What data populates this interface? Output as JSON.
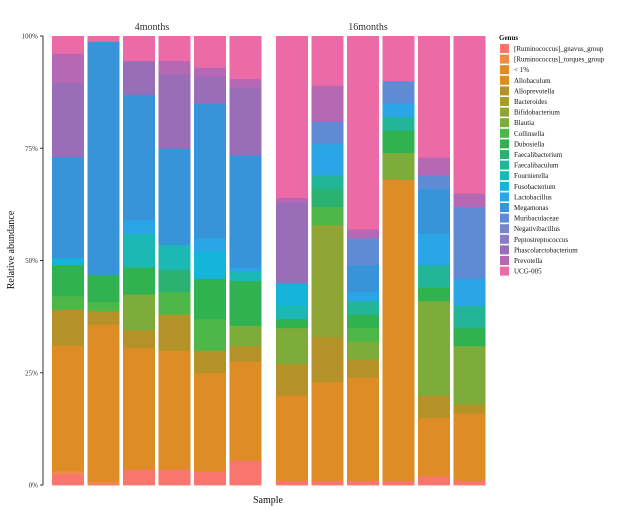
{
  "chart_data": {
    "type": "bar",
    "stacked": true,
    "facets": [
      "4months",
      "16months"
    ],
    "xlabel": "Sample",
    "ylabel": "Relative abundance",
    "ylim": [
      0,
      1
    ],
    "yticks": [
      "0%",
      "25%",
      "50%",
      "75%",
      "100%"
    ],
    "legend": {
      "title": "Genus",
      "position": "right",
      "items": [
        {
          "name": "[Ruminococcus]_gnavus_group",
          "color": "#F8766D"
        },
        {
          "name": "[Ruminococcus]_torques_group",
          "color": "#F08A47"
        },
        {
          "name": "< 1%",
          "color": "#DD8C26"
        },
        {
          "name": "Allobaculum",
          "color": "#D9901A"
        },
        {
          "name": "Alloprevotella",
          "color": "#B59228"
        },
        {
          "name": "Bacteroides",
          "color": "#A99C2C"
        },
        {
          "name": "Bifidobacterium",
          "color": "#8FA637"
        },
        {
          "name": "Blautia",
          "color": "#7EAC3A"
        },
        {
          "name": "Collinsella",
          "color": "#4DB848"
        },
        {
          "name": "Dubosiella",
          "color": "#2FB24F"
        },
        {
          "name": "Faecalibacterium",
          "color": "#2BB273"
        },
        {
          "name": "Faecalibaculum",
          "color": "#22B597"
        },
        {
          "name": "Fournierella",
          "color": "#1CB8B6"
        },
        {
          "name": "Fusobacterium",
          "color": "#14B5D8"
        },
        {
          "name": "Lactobacillus",
          "color": "#2AA6E6"
        },
        {
          "name": "Megamonas",
          "color": "#3894D9"
        },
        {
          "name": "Muribaculaceae",
          "color": "#5E8BD4"
        },
        {
          "name": "Negativibacillus",
          "color": "#7686CC"
        },
        {
          "name": "Peptostreptococcus",
          "color": "#8A7CC4"
        },
        {
          "name": "Phascolarctobacterium",
          "color": "#9A6DB8"
        },
        {
          "name": "Prevotella",
          "color": "#B568B3"
        },
        {
          "name": "UCG-005",
          "color": "#EC6BA6"
        }
      ]
    },
    "series_order": [
      "[Ruminococcus]_gnavus_group",
      "[Ruminococcus]_torques_group",
      "< 1%",
      "Allobaculum",
      "Alloprevotella",
      "Bacteroides",
      "Bifidobacterium",
      "Blautia",
      "Collinsella",
      "Dubosiella",
      "Faecalibacterium",
      "Faecalibaculum",
      "Fournierella",
      "Fusobacterium",
      "Lactobacillus",
      "Megamonas",
      "Muribaculaceae",
      "Negativibacillus",
      "Peptostreptococcus",
      "Phascolarctobacterium",
      "Prevotella",
      "UCG-005"
    ],
    "samples": [
      {
        "facet": "4months",
        "values": [
          0.025,
          0.006,
          0.28,
          0.0,
          0.08,
          0.0,
          0.0,
          0.0,
          0.03,
          0.07,
          0.0,
          0.0,
          0.0,
          0.015,
          0.0,
          0.225,
          0.0,
          0.0,
          0.0,
          0.165,
          0.065,
          0.039
        ]
      },
      {
        "facet": "4months",
        "values": [
          0.003,
          0.005,
          0.35,
          0.0,
          0.03,
          0.0,
          0.0,
          0.0,
          0.02,
          0.06,
          0.0,
          0.0,
          0.0,
          0.0,
          0.0,
          0.52,
          0.0,
          0.0,
          0.0,
          0.0,
          0.0,
          0.012
        ]
      },
      {
        "facet": "4months",
        "values": [
          0.035,
          0.0,
          0.27,
          0.0,
          0.04,
          0.0,
          0.0,
          0.08,
          0.0,
          0.06,
          0.0,
          0.0,
          0.075,
          0.0,
          0.03,
          0.28,
          0.0,
          0.0,
          0.0,
          0.075,
          0.0,
          0.055
        ]
      },
      {
        "facet": "4months",
        "values": [
          0.035,
          0.0,
          0.265,
          0.0,
          0.08,
          0.0,
          0.0,
          0.0,
          0.05,
          0.0,
          0.05,
          0.0,
          0.055,
          0.0,
          0.0,
          0.215,
          0.0,
          0.0,
          0.0,
          0.165,
          0.03,
          0.055
        ]
      },
      {
        "facet": "4months",
        "values": [
          0.03,
          0.0,
          0.22,
          0.0,
          0.05,
          0.0,
          0.0,
          0.0,
          0.07,
          0.09,
          0.0,
          0.0,
          0.0,
          0.06,
          0.03,
          0.3,
          0.0,
          0.0,
          0.0,
          0.06,
          0.02,
          0.07
        ]
      },
      {
        "facet": "4months",
        "values": [
          0.055,
          0.0,
          0.22,
          0.0,
          0.035,
          0.0,
          0.0,
          0.045,
          0.0,
          0.1,
          0.0,
          0.0,
          0.02,
          0.0,
          0.01,
          0.25,
          0.0,
          0.0,
          0.0,
          0.15,
          0.02,
          0.095
        ]
      },
      {
        "facet": "16months",
        "values": [
          0.01,
          0.0,
          0.19,
          0.0,
          0.07,
          0.0,
          0.0,
          0.08,
          0.0,
          0.02,
          0.0,
          0.0,
          0.03,
          0.05,
          0.0,
          0.0,
          0.0,
          0.0,
          0.0,
          0.18,
          0.01,
          0.36
        ]
      },
      {
        "facet": "16months",
        "values": [
          0.01,
          0.0,
          0.22,
          0.0,
          0.1,
          0.0,
          0.25,
          0.0,
          0.04,
          0.0,
          0.04,
          0.03,
          0.0,
          0.0,
          0.07,
          0.0,
          0.05,
          0.0,
          0.0,
          0.0,
          0.08,
          0.11
        ]
      },
      {
        "facet": "16months",
        "values": [
          0.01,
          0.0,
          0.23,
          0.0,
          0.04,
          0.0,
          0.0,
          0.04,
          0.03,
          0.03,
          0.0,
          0.03,
          0.0,
          0.0,
          0.02,
          0.06,
          0.06,
          0.0,
          0.0,
          0.0,
          0.02,
          0.43
        ]
      },
      {
        "facet": "16months",
        "values": [
          0.01,
          0.0,
          0.67,
          0.0,
          0.0,
          0.0,
          0.0,
          0.06,
          0.0,
          0.05,
          0.0,
          0.03,
          0.0,
          0.0,
          0.03,
          0.0,
          0.05,
          0.0,
          0.0,
          0.0,
          0.0,
          0.1
        ]
      },
      {
        "facet": "16months",
        "values": [
          0.02,
          0.0,
          0.13,
          0.0,
          0.05,
          0.0,
          0.0,
          0.21,
          0.0,
          0.03,
          0.0,
          0.05,
          0.0,
          0.0,
          0.07,
          0.1,
          0.03,
          0.0,
          0.0,
          0.0,
          0.04,
          0.27
        ]
      },
      {
        "facet": "16months",
        "values": [
          0.01,
          0.0,
          0.15,
          0.0,
          0.02,
          0.0,
          0.0,
          0.13,
          0.0,
          0.04,
          0.0,
          0.05,
          0.0,
          0.0,
          0.06,
          0.0,
          0.16,
          0.0,
          0.0,
          0.0,
          0.03,
          0.35
        ]
      }
    ]
  }
}
